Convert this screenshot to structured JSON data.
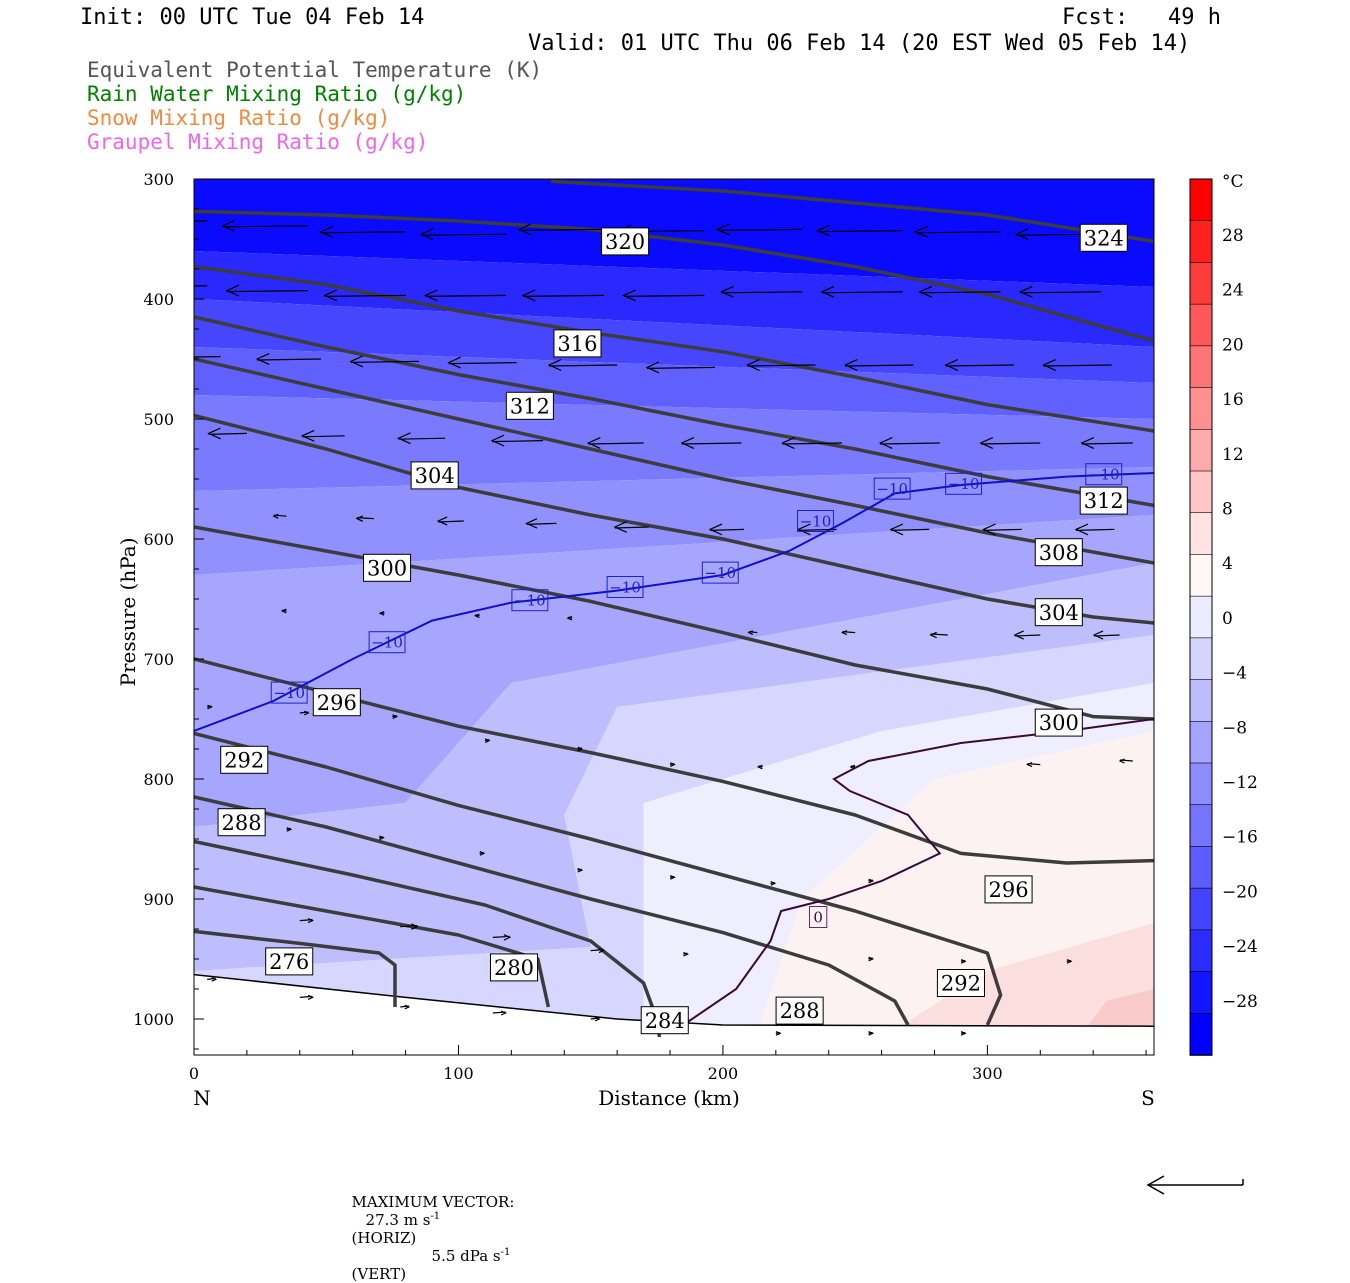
{
  "header": {
    "init": "Init: 00 UTC Tue 04 Feb 14",
    "fcst": "Fcst:   49 h",
    "valid": "Valid: 01 UTC Thu 06 Feb 14 (20 EST Wed 05 Feb 14)",
    "legend": [
      {
        "label": "Equivalent Potential Temperature (K)",
        "color": "#555555"
      },
      {
        "label": "Rain Water Mixing Ratio (g/kg)",
        "color": "#008000"
      },
      {
        "label": "Snow Mixing Ratio (g/kg)",
        "color": "#f08a40"
      },
      {
        "label": "Graupel Mixing Ratio (g/kg)",
        "color": "#ee66ee"
      }
    ]
  },
  "footer": {
    "max_vector": "MAXIMUM VECTOR:",
    "horiz_value": "27.3 m s",
    "horiz_exp": "-1",
    "horiz_unit": "(HORIZ)",
    "vert_value": "5.5 dPa s",
    "vert_exp": "-1",
    "vert_unit": "(VERT)"
  },
  "chart_data": {
    "type": "cross-section",
    "xlabel": "Distance (km)",
    "ylabel": "Pressure (hPa)",
    "xlim": [
      0,
      363
    ],
    "ylim": [
      300,
      1030
    ],
    "y_scale": "linear pressure, inverted",
    "x_ticks": [
      0,
      100,
      200,
      300
    ],
    "y_ticks": [
      300,
      400,
      500,
      600,
      700,
      800,
      900,
      1000
    ],
    "x_end_labels": {
      "left": "N",
      "right": "S"
    },
    "colorbar": {
      "unit": "°C",
      "labels": [
        28,
        24,
        20,
        16,
        12,
        8,
        4,
        0,
        -4,
        -8,
        -12,
        -16,
        -20,
        -24,
        -28
      ],
      "colors_top_to_bottom": [
        "#ff0000",
        "#ff2020",
        "#ff3c3c",
        "#ff5858",
        "#ff7474",
        "#ff9090",
        "#ffaaaa",
        "#ffc6c6",
        "#ffe2e2",
        "#fff6f6",
        "#ececff",
        "#d4d4ff",
        "#bcbcff",
        "#a4a4ff",
        "#8c8cff",
        "#7474ff",
        "#5c5cff",
        "#4444ff",
        "#2c2cff",
        "#1414ff",
        "#0000ff"
      ]
    },
    "theta_e_contours": [
      {
        "label": "276",
        "points": [
          [
            0,
            927
          ],
          [
            40,
            937
          ],
          [
            70,
            945
          ],
          [
            76,
            955
          ],
          [
            76,
            990
          ]
        ]
      },
      {
        "label": "280",
        "points": [
          [
            0,
            890
          ],
          [
            50,
            910
          ],
          [
            100,
            930
          ],
          [
            130,
            950
          ],
          [
            134,
            990
          ]
        ]
      },
      {
        "label": "284",
        "points": [
          [
            0,
            852
          ],
          [
            60,
            880
          ],
          [
            110,
            905
          ],
          [
            150,
            935
          ],
          [
            170,
            970
          ],
          [
            175,
            1000
          ],
          [
            176,
            1015
          ]
        ]
      },
      {
        "label": "288",
        "points": [
          [
            0,
            815
          ],
          [
            50,
            840
          ],
          [
            100,
            870
          ],
          [
            150,
            900
          ],
          [
            200,
            928
          ],
          [
            240,
            955
          ],
          [
            265,
            985
          ],
          [
            270,
            1005
          ]
        ]
      },
      {
        "label": "292",
        "points": [
          [
            0,
            762
          ],
          [
            50,
            790
          ],
          [
            100,
            822
          ],
          [
            150,
            850
          ],
          [
            200,
            880
          ],
          [
            250,
            910
          ],
          [
            300,
            945
          ],
          [
            305,
            980
          ],
          [
            300,
            1005
          ]
        ]
      },
      {
        "label": "296",
        "points": [
          [
            0,
            700
          ],
          [
            50,
            728
          ],
          [
            100,
            756
          ],
          [
            150,
            778
          ],
          [
            200,
            802
          ],
          [
            250,
            830
          ],
          [
            290,
            862
          ],
          [
            330,
            870
          ],
          [
            363,
            868
          ]
        ]
      },
      {
        "label": "300",
        "points": [
          [
            0,
            590
          ],
          [
            50,
            610
          ],
          [
            100,
            630
          ],
          [
            150,
            652
          ],
          [
            200,
            678
          ],
          [
            250,
            705
          ],
          [
            300,
            725
          ],
          [
            340,
            748
          ],
          [
            363,
            750
          ]
        ]
      },
      {
        "label": "304",
        "points": [
          [
            0,
            497
          ],
          [
            50,
            525
          ],
          [
            100,
            557
          ],
          [
            150,
            580
          ],
          [
            200,
            600
          ],
          [
            250,
            625
          ],
          [
            300,
            650
          ],
          [
            340,
            665
          ],
          [
            363,
            670
          ]
        ]
      },
      {
        "label": "308",
        "points": [
          [
            0,
            450
          ],
          [
            50,
            475
          ],
          [
            100,
            500
          ],
          [
            150,
            525
          ],
          [
            200,
            550
          ],
          [
            250,
            572
          ],
          [
            300,
            595
          ],
          [
            363,
            620
          ]
        ]
      },
      {
        "label": "312",
        "points": [
          [
            0,
            415
          ],
          [
            50,
            440
          ],
          [
            100,
            463
          ],
          [
            150,
            483
          ],
          [
            200,
            505
          ],
          [
            250,
            525
          ],
          [
            300,
            548
          ],
          [
            363,
            572
          ]
        ]
      },
      {
        "label": "316",
        "points": [
          [
            0,
            373
          ],
          [
            50,
            388
          ],
          [
            100,
            410
          ],
          [
            150,
            428
          ],
          [
            200,
            444
          ],
          [
            250,
            465
          ],
          [
            300,
            488
          ],
          [
            363,
            510
          ]
        ]
      },
      {
        "label": "320",
        "points": [
          [
            0,
            327
          ],
          [
            50,
            330
          ],
          [
            100,
            335
          ],
          [
            150,
            342
          ],
          [
            200,
            355
          ],
          [
            250,
            373
          ],
          [
            300,
            396
          ],
          [
            363,
            435
          ]
        ]
      },
      {
        "label": "324",
        "points": [
          [
            135,
            302
          ],
          [
            200,
            310
          ],
          [
            250,
            320
          ],
          [
            300,
            330
          ],
          [
            363,
            352
          ]
        ]
      }
    ],
    "isotherms": [
      {
        "label": "-10",
        "color": "#1010cc",
        "points": [
          [
            0,
            760
          ],
          [
            30,
            735
          ],
          [
            60,
            700
          ],
          [
            90,
            668
          ],
          [
            120,
            653
          ],
          [
            160,
            643
          ],
          [
            200,
            630
          ],
          [
            225,
            610
          ],
          [
            245,
            587
          ],
          [
            265,
            562
          ],
          [
            290,
            555
          ],
          [
            330,
            548
          ],
          [
            363,
            545
          ]
        ]
      },
      {
        "label": "0",
        "color": "#3a0a3a",
        "points": [
          [
            185,
            1005
          ],
          [
            205,
            975
          ],
          [
            218,
            935
          ],
          [
            222,
            910
          ],
          [
            240,
            900
          ],
          [
            260,
            885
          ],
          [
            282,
            862
          ],
          [
            270,
            830
          ],
          [
            248,
            810
          ],
          [
            242,
            800
          ],
          [
            255,
            785
          ],
          [
            290,
            770
          ],
          [
            330,
            760
          ],
          [
            363,
            750
          ]
        ]
      }
    ],
    "contour_labels": [
      {
        "text": "320",
        "x": 163,
        "y": 352,
        "kind": "theta"
      },
      {
        "text": "324",
        "x": 344,
        "y": 349,
        "kind": "theta"
      },
      {
        "text": "316",
        "x": 145,
        "y": 437,
        "kind": "theta"
      },
      {
        "text": "312",
        "x": 127,
        "y": 489,
        "kind": "theta"
      },
      {
        "text": "304",
        "x": 91,
        "y": 547,
        "kind": "theta"
      },
      {
        "text": "300",
        "x": 73,
        "y": 624,
        "kind": "theta"
      },
      {
        "text": "296",
        "x": 54,
        "y": 736,
        "kind": "theta"
      },
      {
        "text": "292",
        "x": 19,
        "y": 784,
        "kind": "theta"
      },
      {
        "text": "288",
        "x": 18,
        "y": 836,
        "kind": "theta"
      },
      {
        "text": "276",
        "x": 36,
        "y": 952,
        "kind": "theta"
      },
      {
        "text": "280",
        "x": 121,
        "y": 957,
        "kind": "theta"
      },
      {
        "text": "284",
        "x": 178,
        "y": 1001,
        "kind": "theta"
      },
      {
        "text": "288",
        "x": 229,
        "y": 993,
        "kind": "theta"
      },
      {
        "text": "292",
        "x": 290,
        "y": 970,
        "kind": "theta"
      },
      {
        "text": "296",
        "x": 308,
        "y": 892,
        "kind": "theta"
      },
      {
        "text": "300",
        "x": 327,
        "y": 753,
        "kind": "theta"
      },
      {
        "text": "304",
        "x": 327,
        "y": 661,
        "kind": "theta"
      },
      {
        "text": "308",
        "x": 327,
        "y": 611,
        "kind": "theta"
      },
      {
        "text": "312",
        "x": 344,
        "y": 568,
        "kind": "theta"
      },
      {
        "text": "-10",
        "x": 36,
        "y": 728,
        "kind": "iso"
      },
      {
        "text": "-10",
        "x": 73,
        "y": 686,
        "kind": "iso"
      },
      {
        "text": "-10",
        "x": 127,
        "y": 651,
        "kind": "iso"
      },
      {
        "text": "-10",
        "x": 163,
        "y": 640,
        "kind": "iso"
      },
      {
        "text": "-10",
        "x": 199,
        "y": 628,
        "kind": "iso"
      },
      {
        "text": "-10",
        "x": 235,
        "y": 585,
        "kind": "iso"
      },
      {
        "text": "-10",
        "x": 264,
        "y": 558,
        "kind": "iso"
      },
      {
        "text": "-10",
        "x": 291,
        "y": 554,
        "kind": "iso"
      },
      {
        "text": "-10",
        "x": 344,
        "y": 546,
        "kind": "iso"
      },
      {
        "text": "0",
        "x": 236,
        "y": 915,
        "kind": "iso0"
      }
    ],
    "wind_arrows": [
      {
        "x": 5,
        "p": 335,
        "u": -1.0
      },
      {
        "x": 43,
        "p": 339,
        "u": -1.0
      },
      {
        "x": 80,
        "p": 344,
        "u": -1.0
      },
      {
        "x": 118,
        "p": 346,
        "u": -1.0
      },
      {
        "x": 155,
        "p": 342,
        "u": -1.0
      },
      {
        "x": 193,
        "p": 343,
        "u": -1.0
      },
      {
        "x": 230,
        "p": 342,
        "u": -1.0
      },
      {
        "x": 268,
        "p": 343,
        "u": -1.0
      },
      {
        "x": 305,
        "p": 344,
        "u": -1.0
      },
      {
        "x": 343,
        "p": 346,
        "u": -1.0
      },
      {
        "x": 5,
        "p": 389,
        "u": -0.95
      },
      {
        "x": 43,
        "p": 393,
        "u": -0.95
      },
      {
        "x": 80,
        "p": 397,
        "u": -0.95
      },
      {
        "x": 118,
        "p": 397,
        "u": -0.95
      },
      {
        "x": 155,
        "p": 397,
        "u": -0.95
      },
      {
        "x": 193,
        "p": 397,
        "u": -0.95
      },
      {
        "x": 230,
        "p": 394,
        "u": -0.95
      },
      {
        "x": 268,
        "p": 394,
        "u": -0.95
      },
      {
        "x": 305,
        "p": 394,
        "u": -0.95
      },
      {
        "x": 343,
        "p": 394,
        "u": -0.95
      },
      {
        "x": 10,
        "p": 448,
        "u": -0.75
      },
      {
        "x": 48,
        "p": 450,
        "u": -0.75
      },
      {
        "x": 85,
        "p": 452,
        "u": -0.8
      },
      {
        "x": 122,
        "p": 453,
        "u": -0.8
      },
      {
        "x": 160,
        "p": 455,
        "u": -0.8
      },
      {
        "x": 197,
        "p": 457,
        "u": -0.8
      },
      {
        "x": 235,
        "p": 455,
        "u": -0.8
      },
      {
        "x": 272,
        "p": 455,
        "u": -0.8
      },
      {
        "x": 310,
        "p": 455,
        "u": -0.8
      },
      {
        "x": 347,
        "p": 455,
        "u": -0.8
      },
      {
        "x": 20,
        "p": 512,
        "u": -0.45
      },
      {
        "x": 57,
        "p": 514,
        "u": -0.5
      },
      {
        "x": 95,
        "p": 516,
        "u": -0.55
      },
      {
        "x": 132,
        "p": 518,
        "u": -0.6
      },
      {
        "x": 170,
        "p": 520,
        "u": -0.65
      },
      {
        "x": 207,
        "p": 520,
        "u": -0.7
      },
      {
        "x": 245,
        "p": 520,
        "u": -0.7
      },
      {
        "x": 282,
        "p": 520,
        "u": -0.7
      },
      {
        "x": 320,
        "p": 520,
        "u": -0.7
      },
      {
        "x": 355,
        "p": 520,
        "u": -0.6
      },
      {
        "x": 35,
        "p": 581,
        "u": -0.15
      },
      {
        "x": 68,
        "p": 583,
        "u": -0.2
      },
      {
        "x": 102,
        "p": 585,
        "u": -0.3
      },
      {
        "x": 137,
        "p": 587,
        "u": -0.35
      },
      {
        "x": 172,
        "p": 590,
        "u": -0.4
      },
      {
        "x": 208,
        "p": 592,
        "u": -0.4
      },
      {
        "x": 243,
        "p": 592,
        "u": -0.45
      },
      {
        "x": 278,
        "p": 592,
        "u": -0.45
      },
      {
        "x": 313,
        "p": 592,
        "u": -0.45
      },
      {
        "x": 348,
        "p": 592,
        "u": -0.45
      },
      {
        "x": 35,
        "p": 660,
        "u": -0.05
      },
      {
        "x": 72,
        "p": 662,
        "u": -0.05
      },
      {
        "x": 108,
        "p": 664,
        "u": -0.05
      },
      {
        "x": 143,
        "p": 666,
        "u": -0.05
      },
      {
        "x": 213,
        "p": 678,
        "u": -0.1
      },
      {
        "x": 250,
        "p": 678,
        "u": -0.15
      },
      {
        "x": 285,
        "p": 680,
        "u": -0.2
      },
      {
        "x": 320,
        "p": 680,
        "u": -0.3
      },
      {
        "x": 350,
        "p": 680,
        "u": -0.3
      },
      {
        "x": 5,
        "p": 740,
        "u": 0.05
      },
      {
        "x": 40,
        "p": 745,
        "u": 0.1
      },
      {
        "x": 75,
        "p": 748,
        "u": 0.05
      },
      {
        "x": 110,
        "p": 768,
        "u": 0.05
      },
      {
        "x": 145,
        "p": 775,
        "u": 0.05
      },
      {
        "x": 180,
        "p": 788,
        "u": 0.05
      },
      {
        "x": 215,
        "p": 790,
        "u": -0.05
      },
      {
        "x": 250,
        "p": 790,
        "u": -0.05
      },
      {
        "x": 320,
        "p": 788,
        "u": -0.15
      },
      {
        "x": 355,
        "p": 785,
        "u": -0.15
      },
      {
        "x": 35,
        "p": 842,
        "u": 0.05
      },
      {
        "x": 70,
        "p": 849,
        "u": 0.05
      },
      {
        "x": 108,
        "p": 862,
        "u": 0.05
      },
      {
        "x": 145,
        "p": 876,
        "u": 0.05
      },
      {
        "x": 180,
        "p": 882,
        "u": 0.05
      },
      {
        "x": 218,
        "p": 887,
        "u": 0.05
      },
      {
        "x": 255,
        "p": 885,
        "u": 0.05
      },
      {
        "x": 5,
        "p": 967,
        "u": 0.1
      },
      {
        "x": 40,
        "p": 982,
        "u": 0.15
      },
      {
        "x": 78,
        "p": 990,
        "u": 0.1
      },
      {
        "x": 113,
        "p": 995,
        "u": 0.15
      },
      {
        "x": 150,
        "p": 1000,
        "u": 0.1
      },
      {
        "x": 40,
        "p": 918,
        "u": 0.15
      },
      {
        "x": 78,
        "p": 923,
        "u": 0.2
      },
      {
        "x": 113,
        "p": 932,
        "u": 0.2
      },
      {
        "x": 150,
        "p": 943,
        "u": 0.15
      },
      {
        "x": 185,
        "p": 946,
        "u": 0.05
      },
      {
        "x": 255,
        "p": 950,
        "u": 0.05
      },
      {
        "x": 290,
        "p": 952,
        "u": 0.05
      },
      {
        "x": 330,
        "p": 952,
        "u": 0.05
      },
      {
        "x": 220,
        "p": 1012,
        "u": 0.05
      },
      {
        "x": 255,
        "p": 1012,
        "u": 0.05
      },
      {
        "x": 290,
        "p": 1012,
        "u": 0.05
      }
    ]
  }
}
